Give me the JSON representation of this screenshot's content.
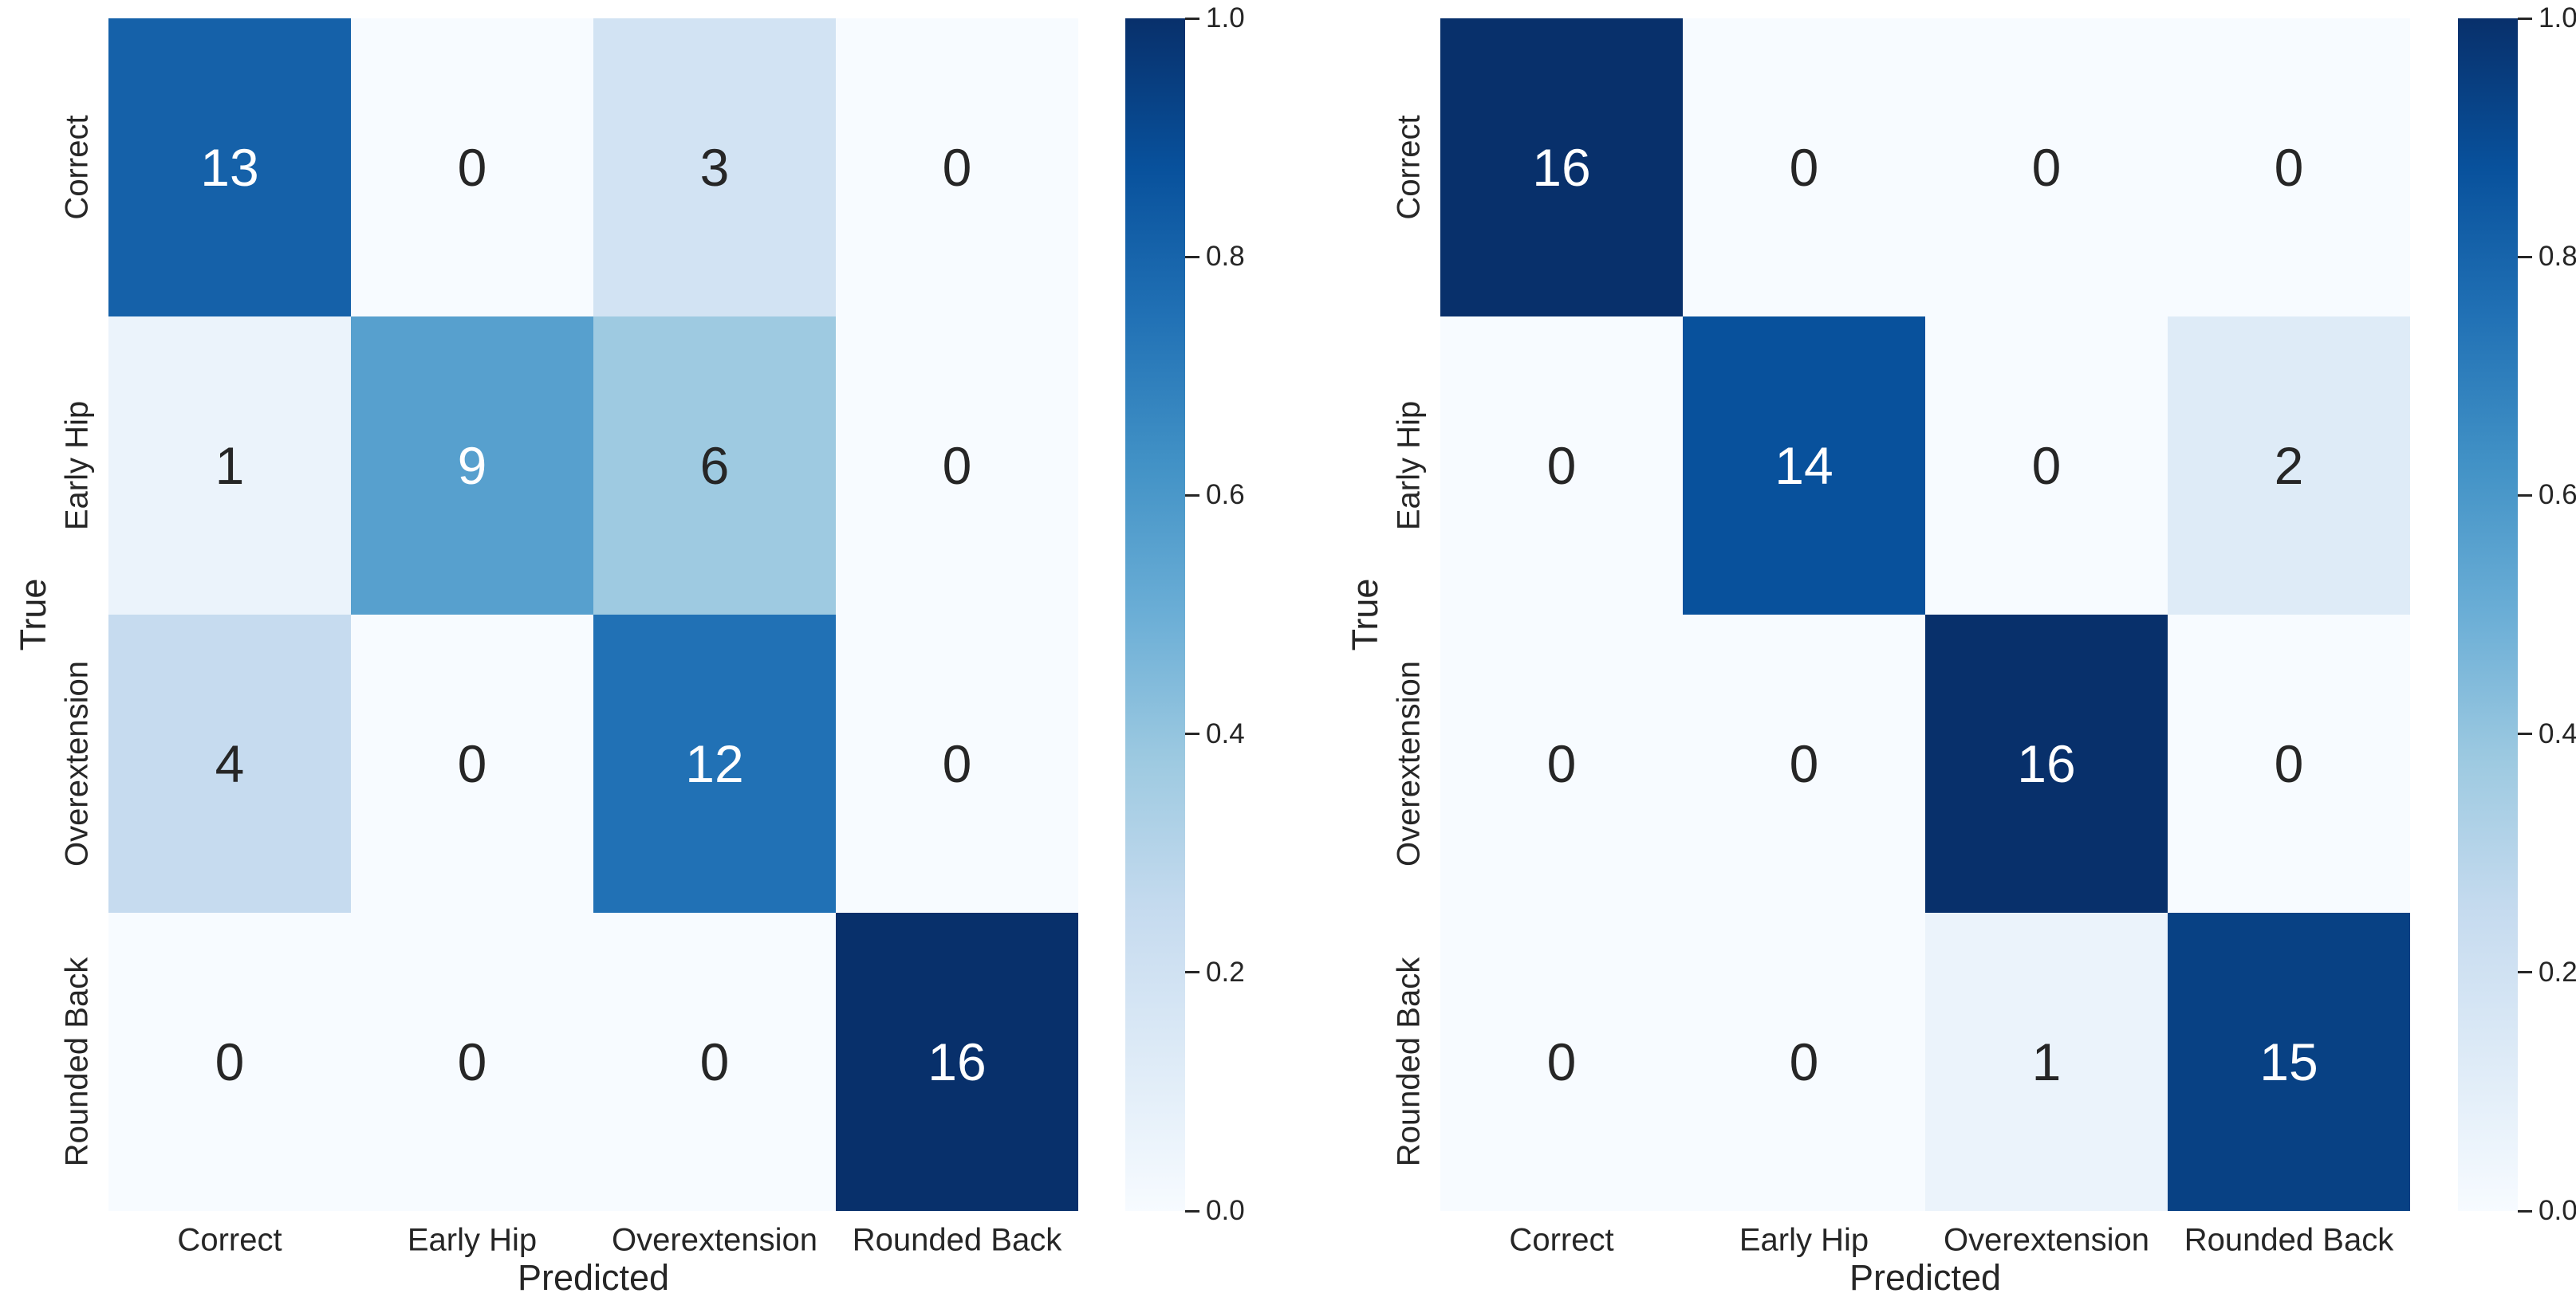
{
  "figure": {
    "background": "#ffffff",
    "text_color": "#262626"
  },
  "colormap": {
    "name": "Blues",
    "anchors": [
      "#f7fbff",
      "#deebf7",
      "#c6dbef",
      "#9ecae1",
      "#6baed6",
      "#4292c6",
      "#2171b5",
      "#08519c",
      "#08306b"
    ],
    "annotation_dark_text": "#262626",
    "annotation_light_text": "#ffffff"
  },
  "chart_data": [
    {
      "type": "heatmap",
      "title": "",
      "xlabel": "Predicted",
      "ylabel": "True",
      "x_categories": [
        "Correct",
        "Early Hip",
        "Overextension",
        "Rounded Back"
      ],
      "y_categories": [
        "Correct",
        "Early Hip",
        "Overextension",
        "Rounded Back"
      ],
      "values": [
        [
          13,
          0,
          3,
          0
        ],
        [
          1,
          9,
          6,
          0
        ],
        [
          4,
          0,
          12,
          0
        ],
        [
          0,
          0,
          0,
          16
        ]
      ],
      "color_normalization_max": 16,
      "colorbar_range": [
        0.0,
        1.0
      ],
      "colorbar_tick_labels": [
        "1.0",
        "0.8",
        "0.6",
        "0.4",
        "0.2",
        "0.0"
      ],
      "legend_position": "right-colorbar",
      "grid": false
    },
    {
      "type": "heatmap",
      "title": "",
      "xlabel": "Predicted",
      "ylabel": "True",
      "x_categories": [
        "Correct",
        "Early Hip",
        "Overextension",
        "Rounded Back"
      ],
      "y_categories": [
        "Correct",
        "Early Hip",
        "Overextension",
        "Rounded Back"
      ],
      "values": [
        [
          16,
          0,
          0,
          0
        ],
        [
          0,
          14,
          0,
          2
        ],
        [
          0,
          0,
          16,
          0
        ],
        [
          0,
          0,
          1,
          15
        ]
      ],
      "color_normalization_max": 16,
      "colorbar_range": [
        0.0,
        1.0
      ],
      "colorbar_tick_labels": [
        "1.0",
        "0.8",
        "0.6",
        "0.4",
        "0.2",
        "0.0"
      ],
      "legend_position": "right-colorbar",
      "grid": false
    }
  ]
}
